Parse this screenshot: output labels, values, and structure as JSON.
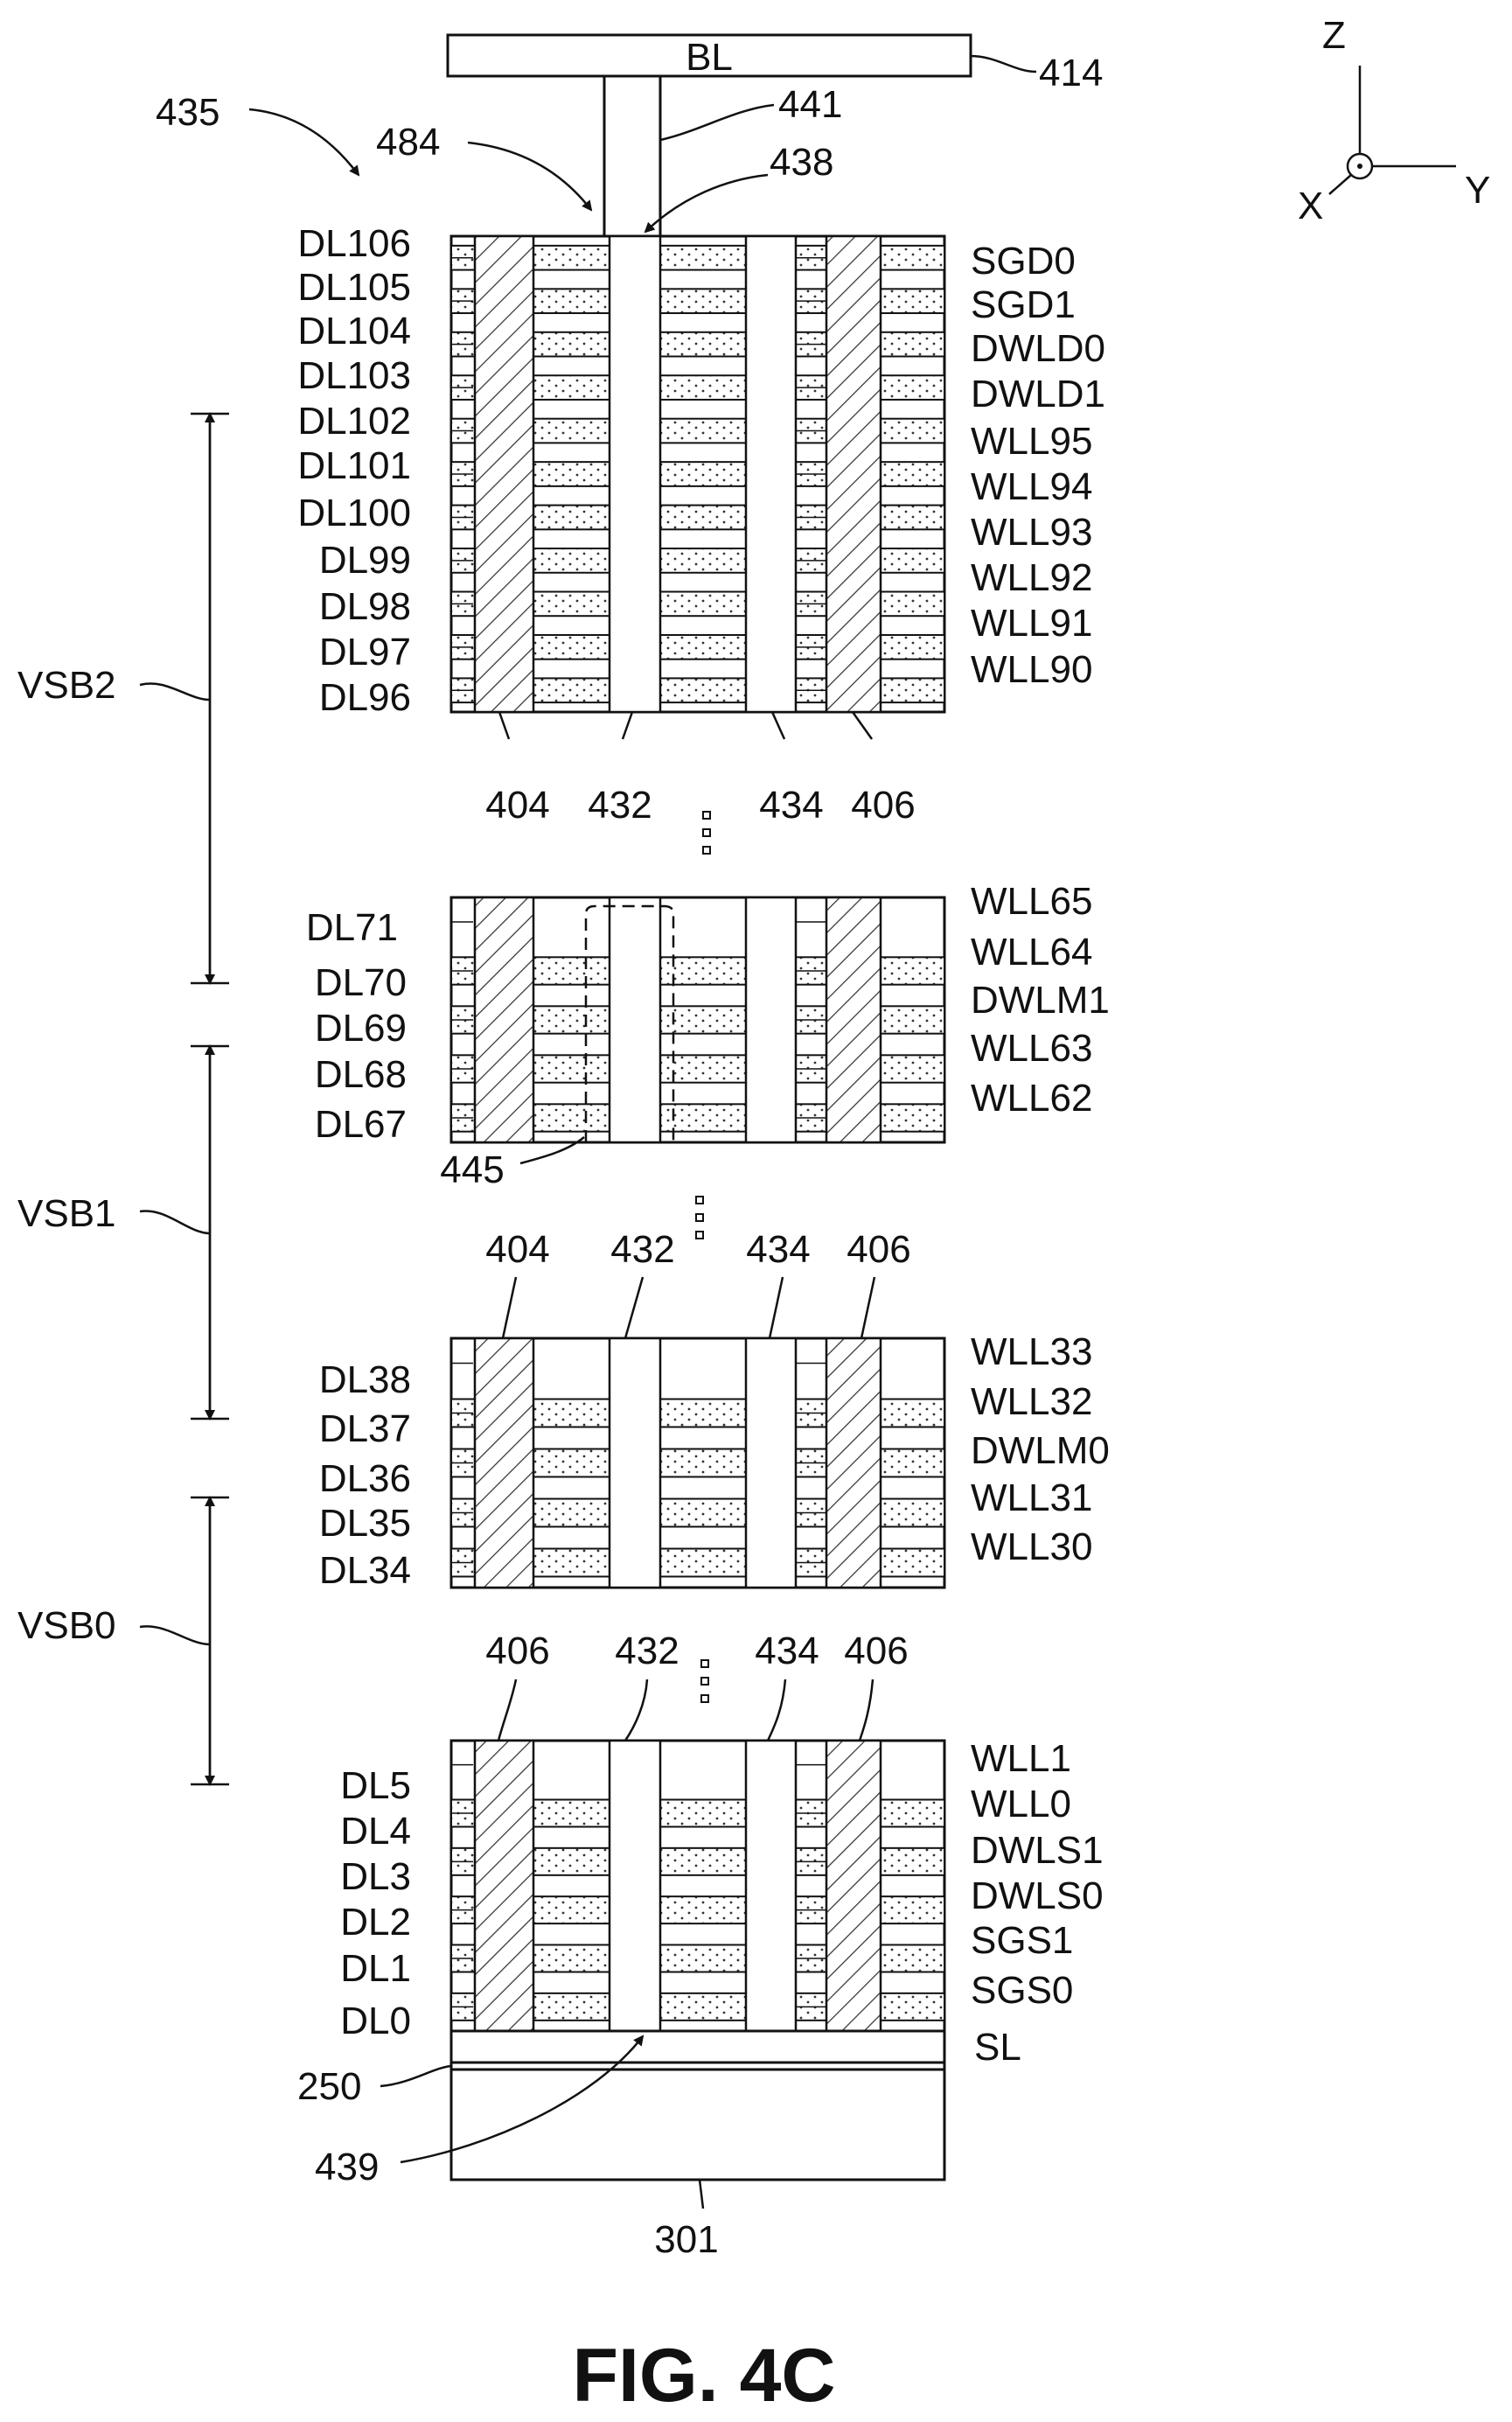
{
  "figure": {
    "title": "FIG. 4C",
    "ref_stack": "435",
    "ref_bl_arrow": "484",
    "axes": {
      "z": "Z",
      "x": "X",
      "y": "Y"
    }
  },
  "bitline": {
    "label": "BL",
    "ref": "414"
  },
  "contact_refs": {
    "contact": "441",
    "contact_bottom": "438",
    "source_contact": "439"
  },
  "blocks": [
    {
      "id": "top",
      "dl_labels": [
        "DL106",
        "DL105",
        "DL104",
        "DL103",
        "DL102",
        "DL101",
        "DL100",
        "DL99",
        "DL98",
        "DL97",
        "DL96"
      ],
      "right_labels": [
        "SGD0",
        "SGD1",
        "DWLD0",
        "DWLD1",
        "WLL95",
        "WLL94",
        "WLL93",
        "WLL92",
        "WLL91",
        "WLL90"
      ],
      "bottom_refs": [
        "404",
        "432",
        "434",
        "406"
      ]
    },
    {
      "id": "upper-mid",
      "dl_labels": [
        "DL71",
        "DL70",
        "DL69",
        "DL68",
        "DL67"
      ],
      "right_labels": [
        "WLL65",
        "WLL64",
        "DWLM1",
        "WLL63",
        "WLL62"
      ],
      "dashed_ref": "445"
    },
    {
      "id": "lower-mid",
      "top_refs": [
        "404",
        "432",
        "434",
        "406"
      ],
      "dl_labels": [
        "DL38",
        "DL37",
        "DL36",
        "DL35",
        "DL34"
      ],
      "right_labels": [
        "WLL33",
        "WLL32",
        "DWLM0",
        "WLL31",
        "WLL30"
      ]
    },
    {
      "id": "bottom",
      "top_refs": [
        "406",
        "432",
        "434",
        "406"
      ],
      "dl_labels": [
        "DL5",
        "DL4",
        "DL3",
        "DL2",
        "DL1",
        "DL0"
      ],
      "right_labels": [
        "WLL1",
        "WLL0",
        "DWLS1",
        "DWLS0",
        "SGS1",
        "SGS0",
        "SL"
      ]
    }
  ],
  "sub_blocks": [
    "VSB2",
    "VSB1",
    "VSB0"
  ],
  "substrate": {
    "layer_ref": "250",
    "substrate_ref": "301"
  }
}
